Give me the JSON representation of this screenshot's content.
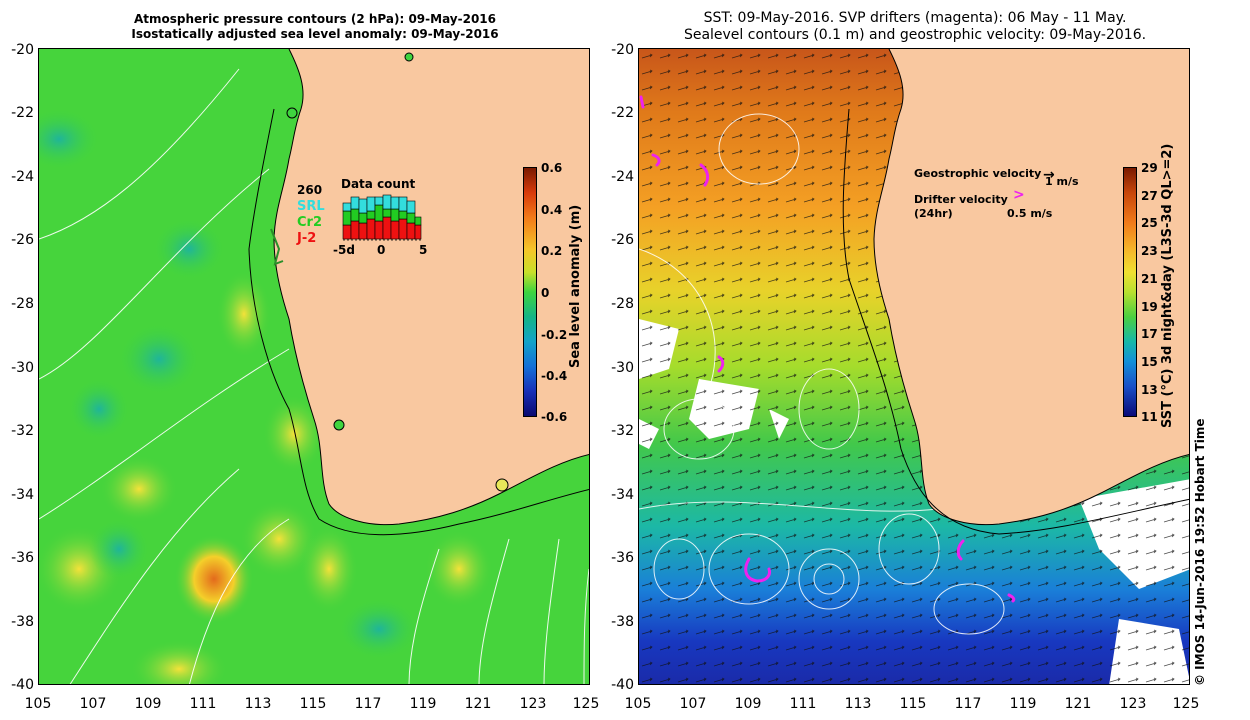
{
  "left_panel": {
    "title_line1": "Atmospheric pressure contours (2 hPa): 09-May-2016",
    "title_line2": "Isostatically adjusted sea level anomaly: 09-May-2016",
    "y_ticks": [
      "-20",
      "-22",
      "-24",
      "-26",
      "-28",
      "-30",
      "-32",
      "-34",
      "-36",
      "-38",
      "-40"
    ],
    "x_ticks": [
      "105",
      "107",
      "109",
      "111",
      "113",
      "115",
      "117",
      "119",
      "121",
      "123",
      "125"
    ],
    "colorbar": {
      "label": "Sea level anomaly (m)",
      "ticks": [
        "0.6",
        "0.4",
        "0.2",
        "0",
        "-0.2",
        "-0.4",
        "-0.6"
      ]
    },
    "inset": {
      "title": "Data count",
      "max_label": "260",
      "legend": [
        {
          "name": "SRL",
          "color": "#33dddd"
        },
        {
          "name": "Cr2",
          "color": "#22cc22"
        },
        {
          "name": "J-2",
          "color": "#ee1111"
        }
      ],
      "x_ticks": [
        "-5d",
        "0",
        "5"
      ]
    }
  },
  "right_panel": {
    "title_line1": "SST: 09-May-2016. SVP drifters (magenta): 06 May - 11 May.",
    "title_line2": "Sealevel contours (0.1 m) and geostrophic velocity: 09-May-2016.",
    "y_ticks": [
      "-20",
      "-22",
      "-24",
      "-26",
      "-28",
      "-30",
      "-32",
      "-34",
      "-36",
      "-38",
      "-40"
    ],
    "x_ticks": [
      "105",
      "107",
      "109",
      "111",
      "113",
      "115",
      "117",
      "119",
      "121",
      "123",
      "125"
    ],
    "colorbar": {
      "label": "SST (°C) 3d night&day (L3S-3d QL>=2)",
      "ticks": [
        "29",
        "27",
        "25",
        "23",
        "21",
        "19",
        "17",
        "15",
        "13",
        "11"
      ]
    },
    "legend": {
      "geo_label": "Geostrophic velocity",
      "geo_scale": "1 m/s",
      "drifter_label": "Drifter velocity",
      "drifter_sub": "(24hr)",
      "drifter_scale": "0.5 m/s"
    },
    "credit": "© IMOS 14-Jun-2016 19:52 Hobart Time"
  },
  "colors": {
    "land": "#f9c8a0",
    "ocean_green": "#3fd43f",
    "magenta": "#ee22ee"
  }
}
